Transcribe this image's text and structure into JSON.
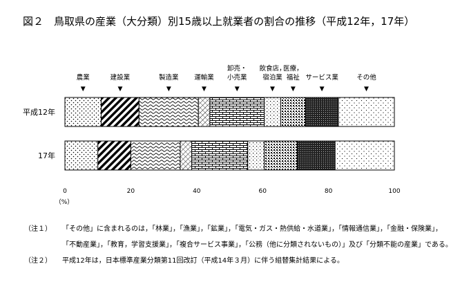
{
  "title": "図２　鳥取県の産業（大分類）別15歳以上就業者の割合の推移（平成12年，17年）",
  "chart_data": {
    "type": "bar",
    "stacked": "100%",
    "orientation": "horizontal",
    "categories": [
      "平成12年",
      "17年"
    ],
    "series": [
      {
        "name": "農業",
        "values": [
          11.0,
          10.0
        ],
        "pattern": "dots"
      },
      {
        "name": "建設業",
        "values": [
          11.5,
          10.0
        ],
        "pattern": "diagonal"
      },
      {
        "name": "製造業",
        "values": [
          18.0,
          15.0
        ],
        "pattern": "waves"
      },
      {
        "name": "運輸業",
        "values": [
          3.5,
          3.5
        ],
        "pattern": "hatch"
      },
      {
        "name": "卸売・小売業",
        "values": [
          16.5,
          17.0
        ],
        "pattern": "brick"
      },
      {
        "name": "飲食店，宿泊業",
        "values": [
          5.0,
          5.0
        ],
        "pattern": "lightdots"
      },
      {
        "name": "医療，福祉",
        "values": [
          7.5,
          10.0
        ],
        "pattern": "lattice"
      },
      {
        "name": "サービス業",
        "values": [
          10.0,
          11.5
        ],
        "pattern": "dense"
      },
      {
        "name": "その他",
        "values": [
          17.0,
          18.0
        ],
        "pattern": "sparse"
      }
    ],
    "legend_labels": [
      [
        "農業"
      ],
      [
        "建設業"
      ],
      [
        "製造業"
      ],
      [
        "運輸業"
      ],
      [
        "卸売・",
        "小売業"
      ],
      [
        "飲食店，",
        "宿泊業"
      ],
      [
        "医療，",
        "福祉"
      ],
      [
        "サービス業"
      ],
      [
        "その他"
      ]
    ],
    "legend_marker": "▼",
    "x_ticks": [
      0,
      20,
      40,
      60,
      80,
      100
    ],
    "x_unit": "（%）",
    "xlim": [
      0,
      100
    ],
    "grid": false,
    "legend_placement": "top"
  },
  "notes": [
    {
      "label": "（注１）",
      "lines": [
        "「その他」に含まれるのは，「林業」，「漁業」，「鉱業」，「電気・ガス・熱供給・水道業」，「情報通信業」，「金融・保険業」，",
        "「不動産業」，「教育，学習支援業」，「複合サービス事業」，「公務（他に分類されないもの）」及び「分類不能の産業」である。"
      ]
    },
    {
      "label": "（注２）",
      "lines": [
        "平成12年は，日本標準産業分類第11回改訂（平成14年３月）に伴う組替集計結果による。"
      ]
    }
  ]
}
